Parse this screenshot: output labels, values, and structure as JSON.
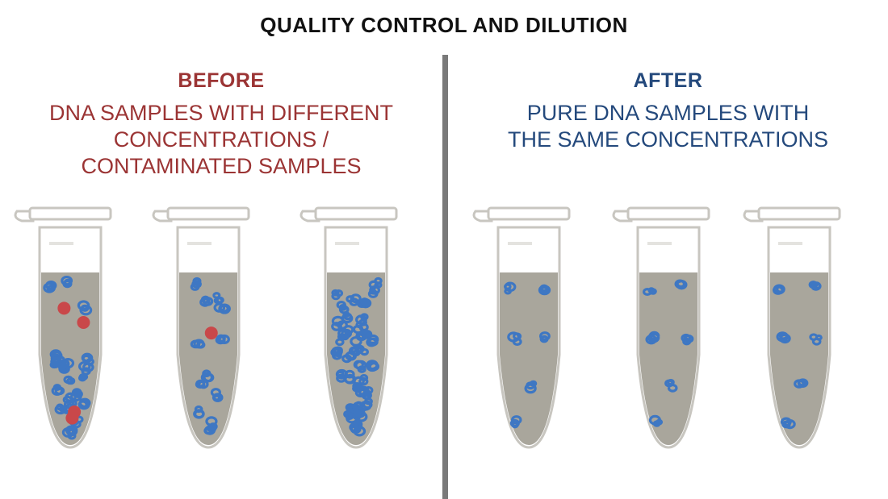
{
  "title": "QUALITY CONTROL AND DILUTION",
  "before": {
    "heading": "BEFORE",
    "description": "DNA SAMPLES WITH DIFFERENT\nCONCENTRATIONS /\nCONTAMINATED SAMPLES",
    "color": "#9b3434",
    "tubes": [
      {
        "dna_clusters": 22,
        "contaminants": 4
      },
      {
        "dna_clusters": 12,
        "contaminants": 1
      },
      {
        "dna_clusters": 40,
        "contaminants": 0
      }
    ]
  },
  "after": {
    "heading": "AFTER",
    "description": "PURE DNA SAMPLES WITH\nTHE SAME CONCENTRATIONS",
    "color": "#24497c",
    "tubes": [
      {
        "dna_clusters": 6,
        "contaminants": 0
      },
      {
        "dna_clusters": 6,
        "contaminants": 0
      },
      {
        "dna_clusters": 6,
        "contaminants": 0
      }
    ]
  },
  "colors": {
    "liquid": "#a9a69c",
    "tube_outline": "#c8c6c0",
    "dna": "#3e77c3",
    "contaminant": "#c9484a",
    "divider": "#7a7a7a"
  }
}
